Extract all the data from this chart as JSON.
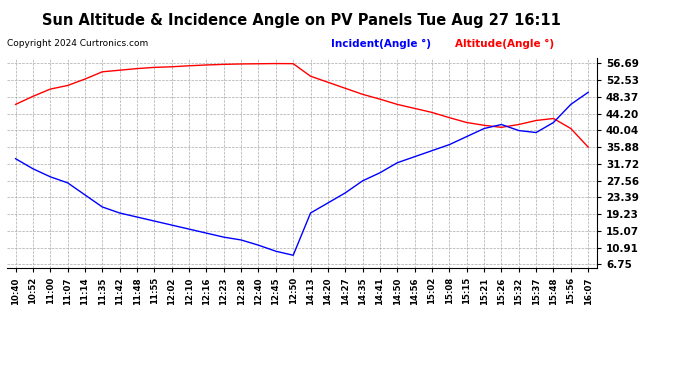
{
  "title": "Sun Altitude & Incidence Angle on PV Panels Tue Aug 27 16:11",
  "copyright": "Copyright 2024 Curtronics.com",
  "legend_incident": "Incident(Angle °)",
  "legend_altitude": "Altitude(Angle °)",
  "bg_color": "#ffffff",
  "grid_color": "#aaaaaa",
  "yticks": [
    6.75,
    10.91,
    15.07,
    19.23,
    23.39,
    27.56,
    31.72,
    35.88,
    40.04,
    44.2,
    48.37,
    52.53,
    56.69
  ],
  "ymin": 5.8,
  "ymax": 58.0,
  "xtick_labels": [
    "10:40",
    "10:52",
    "11:00",
    "11:07",
    "11:14",
    "11:35",
    "11:42",
    "11:48",
    "11:55",
    "12:02",
    "12:10",
    "12:16",
    "12:23",
    "12:28",
    "12:40",
    "12:45",
    "12:50",
    "14:13",
    "14:20",
    "14:27",
    "14:35",
    "14:41",
    "14:50",
    "14:56",
    "15:02",
    "15:08",
    "15:15",
    "15:21",
    "15:26",
    "15:32",
    "15:37",
    "15:48",
    "15:56",
    "16:07"
  ],
  "altitude_y": [
    46.5,
    48.5,
    50.3,
    51.2,
    52.8,
    54.6,
    55.0,
    55.4,
    55.7,
    55.85,
    56.1,
    56.3,
    56.45,
    56.55,
    56.6,
    56.65,
    56.62,
    53.5,
    52.0,
    50.5,
    49.0,
    47.8,
    46.5,
    45.5,
    44.5,
    43.2,
    42.0,
    41.3,
    40.8,
    41.5,
    42.5,
    43.0,
    40.5,
    35.88
  ],
  "incident_y": [
    33.0,
    30.5,
    28.5,
    27.0,
    24.0,
    21.0,
    19.5,
    18.5,
    17.5,
    16.5,
    15.5,
    14.5,
    13.5,
    12.8,
    11.5,
    10.0,
    9.0,
    19.5,
    22.0,
    24.5,
    27.5,
    29.5,
    32.0,
    33.5,
    35.0,
    36.5,
    38.5,
    40.5,
    41.5,
    40.0,
    39.5,
    42.0,
    46.5,
    49.5
  ]
}
